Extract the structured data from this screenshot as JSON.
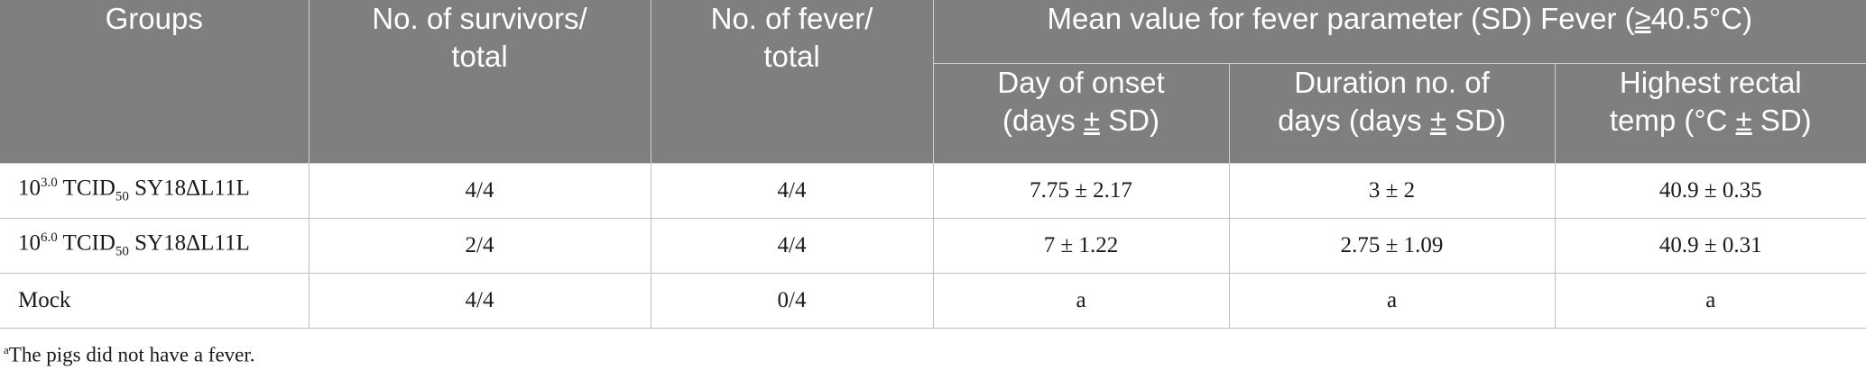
{
  "table": {
    "headers": {
      "groups": "Groups",
      "survivors_line1": "No. of survivors/",
      "survivors_line2": "total",
      "fever_line1": "No. of fever/",
      "fever_line2": "total",
      "mean_value_prefix": "Mean value for fever parameter (SD) Fever (",
      "mean_value_ge": "≥",
      "mean_value_suffix": "40.5°C)",
      "onset_line1": "Day of onset",
      "onset_line2_a": "(days ",
      "onset_line2_pm": "±",
      "onset_line2_b": " SD)",
      "duration_line1": "Duration no. of",
      "duration_line2_a": "days (days ",
      "duration_line2_pm": "±",
      "duration_line2_b": " SD)",
      "temp_line1": "Highest rectal",
      "temp_line2_a": "temp (°C ",
      "temp_line2_pm": "±",
      "temp_line2_b": " SD)"
    },
    "rows": [
      {
        "group_base": "10",
        "group_exp": "3.0",
        "group_tcid": " TCID",
        "group_sub": "50",
        "group_virus": " SY18ΔL11L",
        "survivors": "4/4",
        "fever": "4/4",
        "onset": "7.75 ± 2.17",
        "duration": "3 ± 2",
        "temp": "40.9 ± 0.35"
      },
      {
        "group_base": "10",
        "group_exp": "6.0",
        "group_tcid": " TCID",
        "group_sub": "50",
        "group_virus": " SY18ΔL11L",
        "survivors": "2/4",
        "fever": "4/4",
        "onset": "7 ± 1.22",
        "duration": "2.75 ± 1.09",
        "temp": "40.9 ± 0.31"
      },
      {
        "group": "Mock",
        "survivors": "4/4",
        "fever": "0/4",
        "onset": "a",
        "duration": "a",
        "temp": "a"
      }
    ]
  },
  "footnote": {
    "marker": "a",
    "text": "The pigs did not have a fever."
  }
}
